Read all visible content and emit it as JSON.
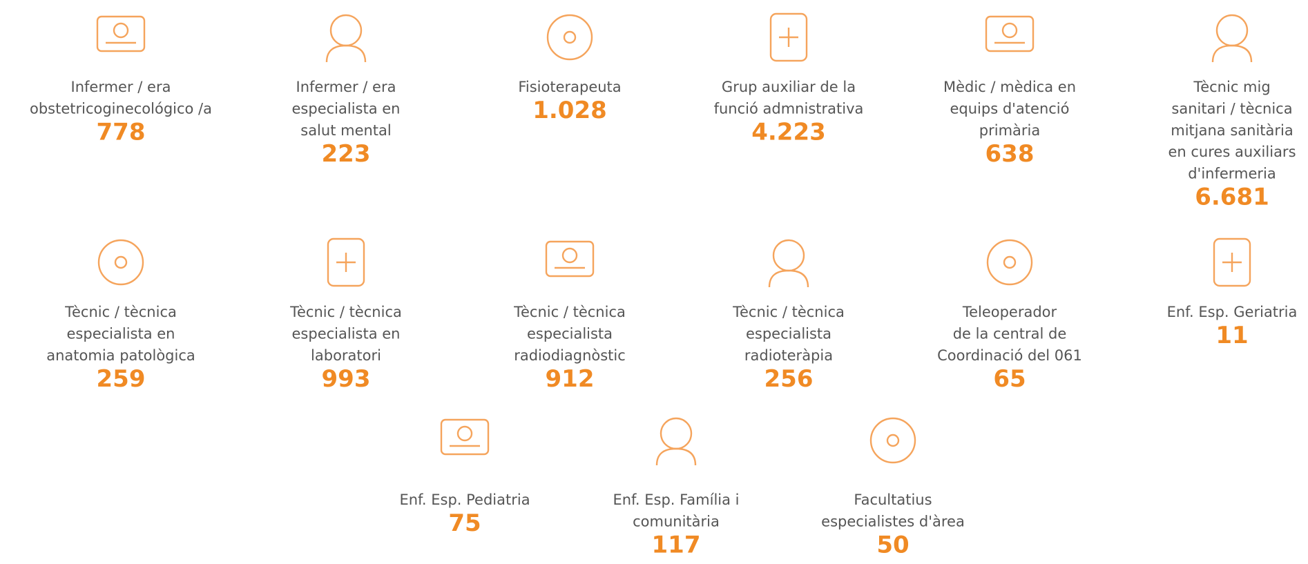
{
  "items": [
    {
      "label": [
        "Infermer / era",
        "obstetricoginecológico /a"
      ],
      "value": "778"
    },
    {
      "label": [
        "Infermer / era",
        "especialista en",
        "salut mental"
      ],
      "value": "223"
    },
    {
      "label": [
        "Fisioterapeuta"
      ],
      "value": "1.028"
    },
    {
      "label": [
        "Grup auxiliar de la",
        "funció admnistrativa"
      ],
      "value": "4.223"
    },
    {
      "label": [
        "Mèdic / mèdica en",
        "equips d'atenció",
        "primària"
      ],
      "value": "638"
    },
    {
      "label": [
        "Tècnic mig",
        "sanitari / tècnica",
        "mitjana sanitària",
        "en cures auxiliars",
        "d'infermeria"
      ],
      "value": "6.681"
    },
    {
      "label": [
        "Tècnic / tècnica",
        "especialista en",
        "anatomia patològica"
      ],
      "value": "259"
    },
    {
      "label": [
        "Tècnic / tècnica",
        "especialista en",
        "laboratori"
      ],
      "value": "993"
    },
    {
      "label": [
        "Tècnic / tècnica",
        "especialista",
        "radiodiagnòstic"
      ],
      "value": "912"
    },
    {
      "label": [
        "Tècnic / tècnica",
        "especialista",
        "radioteràpia"
      ],
      "value": "256"
    },
    {
      "label": [
        "Teleoperador",
        "de la central de",
        "Coordinació del 061"
      ],
      "value": "65"
    },
    {
      "label": [
        "Enf. Esp. Geriatria"
      ],
      "value": "11"
    },
    {
      "label": [
        "Enf. Esp. Pediatria"
      ],
      "value": "75"
    },
    {
      "label": [
        "Enf. Esp. Família i",
        "comunitària"
      ],
      "value": "117"
    },
    {
      "label": [
        "Facultatius",
        "especialistes d'àrea"
      ],
      "value": "50"
    }
  ]
}
